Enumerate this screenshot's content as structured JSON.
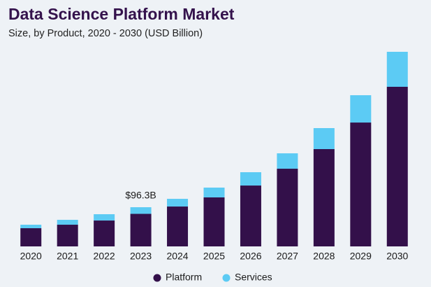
{
  "chart_data": {
    "type": "stacked_bar",
    "title": "Data Science Platform Market",
    "subtitle": "Size, by Product, 2020 - 2030 (USD Billion)",
    "categories": [
      "2020",
      "2021",
      "2022",
      "2023",
      "2024",
      "2025",
      "2026",
      "2027",
      "2028",
      "2029",
      "2030"
    ],
    "series": [
      {
        "name": "Platform",
        "color": "#33104a",
        "values": [
          44.7,
          53.3,
          63.6,
          80.0,
          98.0,
          120.4,
          149.6,
          190.9,
          239.1,
          304.4,
          392.2
        ]
      },
      {
        "name": "Services",
        "color": "#5ccbf4",
        "values": [
          8.6,
          12.0,
          15.5,
          16.3,
          18.9,
          24.1,
          32.7,
          37.8,
          51.6,
          67.1,
          86.0
        ]
      }
    ],
    "annotations": [
      {
        "category": "2023",
        "text": "$96.3B"
      }
    ],
    "legend": "bottom"
  }
}
